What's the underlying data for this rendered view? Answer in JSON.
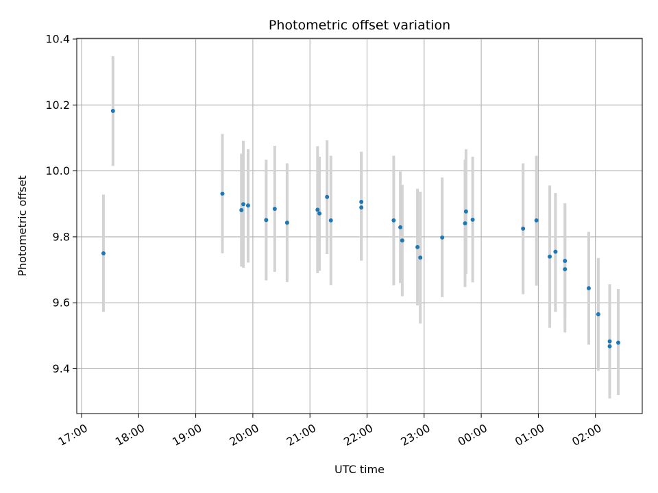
{
  "chart_data": {
    "type": "scatter",
    "title": "Photometric offset variation",
    "xlabel": "UTC time",
    "ylabel": "Photometric offset",
    "x_axis_kind": "time",
    "x_unit": "hours, 17:00 on day 1 to ~02:50 on day 2",
    "xlim": [
      "17:00",
      "02:50"
    ],
    "ylim": [
      9.26,
      10.4
    ],
    "x_ticks": [
      "17:00",
      "18:00",
      "19:00",
      "20:00",
      "21:00",
      "22:00",
      "23:00",
      "00:00",
      "01:00",
      "02:00"
    ],
    "y_ticks": [
      9.4,
      9.6,
      9.8,
      10.0,
      10.2,
      10.4
    ],
    "grid": true,
    "colors": {
      "marker": "#1f77b4",
      "errorbar": "#d3d3d3",
      "grid": "#b0b0b0"
    },
    "points": [
      {
        "t": "17:23",
        "y": 9.75,
        "lo": 9.572,
        "hi": 9.928
      },
      {
        "t": "17:33",
        "y": 10.182,
        "lo": 10.015,
        "hi": 10.348
      },
      {
        "t": "19:28",
        "y": 9.931,
        "lo": 9.75,
        "hi": 10.112
      },
      {
        "t": "19:48",
        "y": 9.881,
        "lo": 9.71,
        "hi": 10.052
      },
      {
        "t": "19:50",
        "y": 9.899,
        "lo": 9.706,
        "hi": 10.091
      },
      {
        "t": "19:55",
        "y": 9.895,
        "lo": 9.722,
        "hi": 10.066
      },
      {
        "t": "20:14",
        "y": 9.851,
        "lo": 9.668,
        "hi": 10.034
      },
      {
        "t": "20:23",
        "y": 9.885,
        "lo": 9.694,
        "hi": 10.076
      },
      {
        "t": "20:36",
        "y": 9.843,
        "lo": 9.663,
        "hi": 10.023
      },
      {
        "t": "21:08",
        "y": 9.882,
        "lo": 9.69,
        "hi": 10.075
      },
      {
        "t": "21:10",
        "y": 9.871,
        "lo": 9.697,
        "hi": 10.043
      },
      {
        "t": "21:18",
        "y": 9.921,
        "lo": 9.748,
        "hi": 10.093
      },
      {
        "t": "21:22",
        "y": 9.85,
        "lo": 9.654,
        "hi": 10.046
      },
      {
        "t": "21:54",
        "y": 9.906,
        "lo": 9.728,
        "hi": 10.058
      },
      {
        "t": "21:54",
        "y": 9.889,
        "lo": 9.728,
        "hi": 10.058
      },
      {
        "t": "22:28",
        "y": 9.85,
        "lo": 9.653,
        "hi": 10.046
      },
      {
        "t": "22:35",
        "y": 9.829,
        "lo": 9.66,
        "hi": 9.998
      },
      {
        "t": "22:37",
        "y": 9.789,
        "lo": 9.62,
        "hi": 9.958
      },
      {
        "t": "22:53",
        "y": 9.769,
        "lo": 9.592,
        "hi": 9.946
      },
      {
        "t": "22:56",
        "y": 9.737,
        "lo": 9.537,
        "hi": 9.937
      },
      {
        "t": "23:19",
        "y": 9.798,
        "lo": 9.617,
        "hi": 9.98
      },
      {
        "t": "23:43",
        "y": 9.841,
        "lo": 9.648,
        "hi": 10.034
      },
      {
        "t": "23:44",
        "y": 9.877,
        "lo": 9.688,
        "hi": 10.066
      },
      {
        "t": "23:51",
        "y": 9.852,
        "lo": 9.662,
        "hi": 10.043
      },
      {
        "t": "00:44",
        "y": 9.825,
        "lo": 9.626,
        "hi": 10.023
      },
      {
        "t": "00:58",
        "y": 9.85,
        "lo": 9.652,
        "hi": 10.046
      },
      {
        "t": "01:12",
        "y": 9.74,
        "lo": 9.524,
        "hi": 9.956
      },
      {
        "t": "01:18",
        "y": 9.755,
        "lo": 9.572,
        "hi": 9.933
      },
      {
        "t": "01:28",
        "y": 9.727,
        "lo": 9.552,
        "hi": 9.902
      },
      {
        "t": "01:28",
        "y": 9.702,
        "lo": 9.51,
        "hi": 9.894
      },
      {
        "t": "01:53",
        "y": 9.644,
        "lo": 9.473,
        "hi": 9.815
      },
      {
        "t": "02:03",
        "y": 9.565,
        "lo": 9.394,
        "hi": 9.736
      },
      {
        "t": "02:15",
        "y": 9.483,
        "lo": 9.31,
        "hi": 9.656
      },
      {
        "t": "02:15",
        "y": 9.468,
        "lo": 9.31,
        "hi": 9.656
      },
      {
        "t": "02:24",
        "y": 9.479,
        "lo": 9.32,
        "hi": 9.642
      }
    ]
  }
}
